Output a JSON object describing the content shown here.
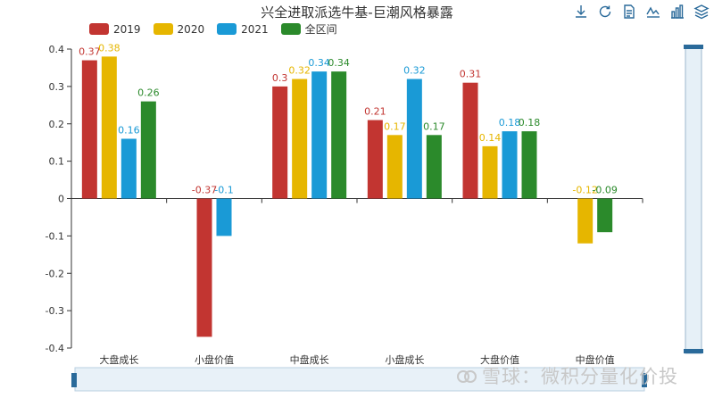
{
  "toolbox": [
    {
      "name": "download-icon",
      "label": "save image"
    },
    {
      "name": "refresh-icon",
      "label": "restore"
    },
    {
      "name": "data-view-icon",
      "label": "data view"
    },
    {
      "name": "line-chart-icon",
      "label": "line"
    },
    {
      "name": "bar-chart-icon",
      "label": "bar"
    },
    {
      "name": "stack-icon",
      "label": "stack"
    }
  ],
  "colors": {
    "series": [
      "#c23531",
      "#e6b600",
      "#1a9ad6",
      "#2b8a2b"
    ],
    "axis": "#333333",
    "slider": "#d6e6f2"
  },
  "watermark": "雪球：微积分量化价投",
  "chart_data": {
    "type": "bar",
    "title": "兴全进取派选牛基-巨潮风格暴露",
    "categories": [
      "大盘成长",
      "小盘价值",
      "中盘成长",
      "小盘成长",
      "大盘价值",
      "中盘价值"
    ],
    "series": [
      {
        "name": "2019",
        "values": [
          0.37,
          -0.37,
          0.3,
          0.21,
          0.31,
          null
        ]
      },
      {
        "name": "2020",
        "values": [
          0.38,
          null,
          0.32,
          0.17,
          0.14,
          -0.12
        ]
      },
      {
        "name": "2021",
        "values": [
          0.16,
          -0.1,
          0.34,
          0.32,
          0.18,
          null
        ]
      },
      {
        "name": "全区间",
        "values": [
          0.26,
          null,
          0.34,
          0.17,
          0.18,
          -0.09
        ]
      }
    ],
    "ylim": [
      -0.4,
      0.4
    ],
    "yticks": [
      "-0.4",
      "-0.3",
      "-0.2",
      "-0.1",
      "0",
      "0.1",
      "0.2",
      "0.3",
      "0.4"
    ],
    "legend_position": "top-left",
    "grid": false
  }
}
